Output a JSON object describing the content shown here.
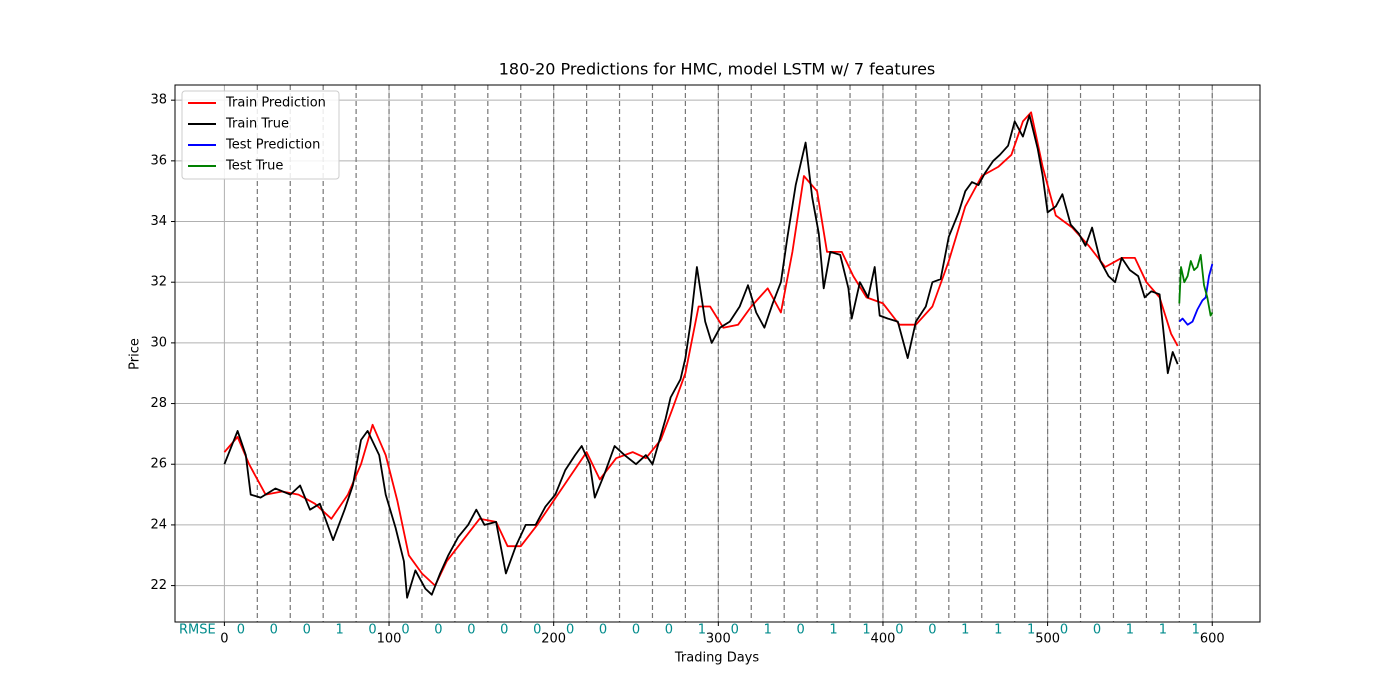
{
  "chart_data": {
    "type": "line",
    "title": "180-20 Predictions for HMC, model LSTM w/ 7 features",
    "xlabel": "Trading Days",
    "ylabel": "Price",
    "xlim": [
      -30,
      629
    ],
    "ylim": [
      20.8,
      38.5
    ],
    "xticks": [
      0,
      100,
      200,
      300,
      400,
      500,
      600
    ],
    "yticks": [
      22,
      24,
      26,
      28,
      30,
      32,
      34,
      36,
      38
    ],
    "grid": true,
    "legend": "upper left",
    "vlines": [
      20,
      40,
      60,
      80,
      100,
      120,
      140,
      160,
      180,
      200,
      220,
      240,
      260,
      280,
      300,
      320,
      340,
      360,
      380,
      400,
      420,
      440,
      460,
      480,
      500,
      520,
      540,
      560,
      580,
      600
    ],
    "rmse_label": "RMSE",
    "rmse": {
      "x": [
        10,
        30,
        50,
        70,
        90,
        110,
        130,
        150,
        170,
        190,
        210,
        230,
        250,
        270,
        290,
        310,
        330,
        350,
        370,
        390,
        410,
        430,
        450,
        470,
        490,
        510,
        530,
        550,
        570,
        590
      ],
      "values": [
        0,
        0,
        0,
        1,
        0,
        0,
        0,
        0,
        0,
        0,
        0,
        0,
        0,
        0,
        1,
        0,
        1,
        0,
        1,
        1,
        0,
        0,
        1,
        1,
        1,
        0,
        0,
        1,
        1,
        1
      ],
      "color": "#008b8b"
    },
    "series": [
      {
        "name": "Train Prediction",
        "color": "#ff0000",
        "x": [
          0,
          8,
          15,
          25,
          35,
          45,
          55,
          65,
          75,
          83,
          90,
          98,
          105,
          112,
          120,
          128,
          135,
          145,
          155,
          165,
          172,
          180,
          190,
          200,
          210,
          220,
          228,
          238,
          248,
          256,
          265,
          272,
          280,
          288,
          295,
          303,
          312,
          320,
          330,
          338,
          345,
          352,
          360,
          366,
          375,
          382,
          390,
          400,
          410,
          420,
          430,
          440,
          450,
          460,
          470,
          478,
          485,
          490,
          497,
          505,
          515,
          525,
          535,
          545,
          553,
          560,
          568,
          575,
          579
        ],
        "values": [
          26.4,
          26.9,
          26.0,
          25.0,
          25.1,
          25.0,
          24.7,
          24.2,
          25.0,
          26.0,
          27.3,
          26.3,
          24.8,
          23.0,
          22.4,
          22.0,
          22.8,
          23.5,
          24.2,
          24.1,
          23.3,
          23.3,
          24.0,
          24.8,
          25.6,
          26.4,
          25.5,
          26.2,
          26.4,
          26.2,
          26.8,
          27.8,
          29.0,
          31.2,
          31.2,
          30.5,
          30.6,
          31.2,
          31.8,
          31.0,
          33.0,
          35.5,
          35.0,
          33.0,
          33.0,
          32.2,
          31.5,
          31.3,
          30.6,
          30.6,
          31.2,
          32.7,
          34.5,
          35.5,
          35.8,
          36.2,
          37.3,
          37.6,
          35.8,
          34.2,
          33.8,
          33.2,
          32.5,
          32.8,
          32.8,
          32.0,
          31.5,
          30.3,
          29.9
        ]
      },
      {
        "name": "Train True",
        "color": "#000000",
        "x": [
          0,
          8,
          13,
          16,
          22,
          31,
          40,
          46,
          52,
          58,
          66,
          73,
          78,
          83,
          87,
          94,
          98,
          104,
          109,
          111,
          116,
          122,
          126,
          131,
          136,
          142,
          148,
          153,
          158,
          165,
          171,
          177,
          183,
          189,
          195,
          201,
          207,
          213,
          217,
          222,
          225,
          231,
          237,
          243,
          250,
          256,
          260,
          268,
          271,
          277,
          280,
          283,
          287,
          292,
          296,
          301,
          307,
          313,
          318,
          323,
          328,
          333,
          338,
          342,
          347,
          353,
          357,
          361,
          364,
          368,
          374,
          379,
          381,
          386,
          391,
          395,
          398,
          403,
          409,
          415,
          420,
          426,
          430,
          435,
          440,
          446,
          450,
          454,
          458,
          462,
          467,
          471,
          476,
          480,
          485,
          489,
          494,
          497,
          500,
          505,
          509,
          514,
          519,
          523,
          527,
          532,
          537,
          541,
          545,
          550,
          555,
          559,
          563,
          568,
          573,
          576,
          579
        ],
        "values": [
          26.0,
          27.1,
          26.3,
          25.0,
          24.9,
          25.2,
          25.0,
          25.3,
          24.5,
          24.7,
          23.5,
          24.5,
          25.3,
          26.8,
          27.1,
          26.3,
          25.0,
          23.9,
          22.8,
          21.6,
          22.5,
          21.9,
          21.7,
          22.4,
          23.0,
          23.6,
          24.0,
          24.5,
          24.0,
          24.1,
          22.4,
          23.3,
          24.0,
          24.0,
          24.6,
          25.0,
          25.8,
          26.3,
          26.6,
          26.0,
          24.9,
          25.7,
          26.6,
          26.3,
          26.0,
          26.3,
          26.0,
          27.5,
          28.2,
          28.8,
          29.5,
          30.6,
          32.5,
          30.7,
          30.0,
          30.5,
          30.7,
          31.2,
          31.9,
          31.0,
          30.5,
          31.3,
          32.0,
          33.5,
          35.2,
          36.6,
          34.8,
          33.6,
          31.8,
          33.0,
          32.9,
          31.8,
          30.8,
          32.0,
          31.5,
          32.5,
          30.9,
          30.8,
          30.7,
          29.5,
          30.7,
          31.2,
          32.0,
          32.1,
          33.5,
          34.3,
          35.0,
          35.3,
          35.2,
          35.6,
          36.0,
          36.2,
          36.5,
          37.3,
          36.8,
          37.5,
          36.4,
          35.5,
          34.3,
          34.5,
          34.9,
          33.9,
          33.6,
          33.2,
          33.8,
          32.7,
          32.2,
          32.0,
          32.8,
          32.4,
          32.2,
          31.5,
          31.7,
          31.6,
          29.0,
          29.7,
          29.3
        ]
      },
      {
        "name": "Test Prediction",
        "color": "#0000ff",
        "x": [
          580,
          582,
          585,
          588,
          591,
          594,
          596,
          598,
          600
        ],
        "values": [
          30.7,
          30.8,
          30.6,
          30.7,
          31.1,
          31.4,
          31.5,
          32.2,
          32.6
        ]
      },
      {
        "name": "Test True",
        "color": "#008000",
        "x": [
          580,
          581,
          583,
          585,
          587,
          589,
          591,
          593,
          595,
          597,
          599,
          600
        ],
        "values": [
          31.3,
          32.5,
          32.0,
          32.2,
          32.7,
          32.4,
          32.5,
          32.9,
          31.9,
          31.5,
          30.9,
          31.0
        ]
      }
    ]
  }
}
